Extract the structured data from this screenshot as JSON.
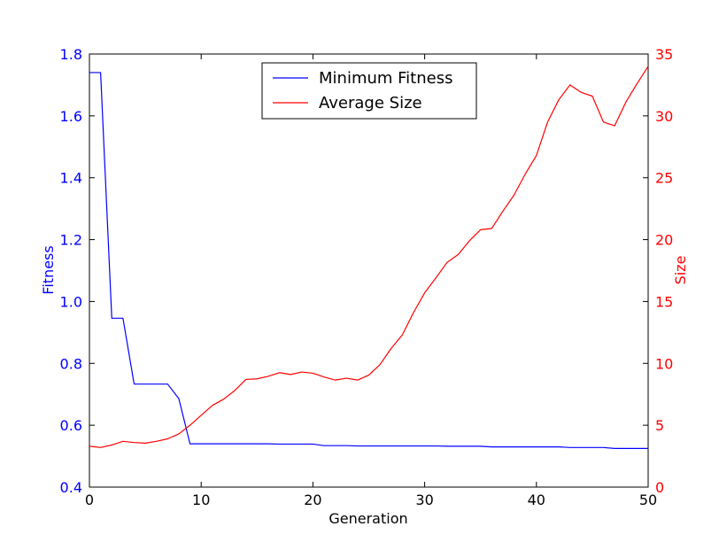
{
  "chart_data": {
    "type": "line",
    "xlabel": "Generation",
    "ylabel": "Fitness",
    "y2label": "Size",
    "xlim": [
      0,
      50
    ],
    "ylim": [
      0.4,
      1.8
    ],
    "y2lim": [
      0,
      35
    ],
    "xticks": [
      0,
      10,
      20,
      30,
      40,
      50
    ],
    "yticks": [
      0.4,
      0.6,
      0.8,
      1.0,
      1.2,
      1.4,
      1.6,
      1.8
    ],
    "y2ticks": [
      0,
      5,
      10,
      15,
      20,
      25,
      30,
      35
    ],
    "grid": false,
    "legend_position": "top-center",
    "colors": {
      "fitness": "#0000ff",
      "size": "#ff0000",
      "axes": "#000000"
    },
    "series": [
      {
        "name": "Minimum Fitness",
        "axis": "left",
        "color": "#0000ff",
        "x": [
          0,
          1,
          2,
          3,
          4,
          5,
          6,
          7,
          8,
          9,
          10,
          11,
          12,
          13,
          14,
          15,
          16,
          17,
          18,
          19,
          20,
          21,
          22,
          23,
          24,
          25,
          26,
          27,
          28,
          29,
          30,
          31,
          32,
          33,
          34,
          35,
          36,
          37,
          38,
          39,
          40,
          41,
          42,
          43,
          44,
          45,
          46,
          47,
          48,
          49,
          50
        ],
        "values": [
          1.74,
          1.74,
          0.946,
          0.946,
          0.733,
          0.733,
          0.733,
          0.733,
          0.686,
          0.54,
          0.54,
          0.54,
          0.54,
          0.54,
          0.54,
          0.54,
          0.54,
          0.539,
          0.539,
          0.539,
          0.539,
          0.534,
          0.534,
          0.534,
          0.533,
          0.533,
          0.533,
          0.533,
          0.533,
          0.533,
          0.533,
          0.533,
          0.532,
          0.532,
          0.532,
          0.532,
          0.53,
          0.53,
          0.53,
          0.53,
          0.53,
          0.53,
          0.53,
          0.528,
          0.528,
          0.528,
          0.528,
          0.525,
          0.525,
          0.525,
          0.525
        ]
      },
      {
        "name": "Average Size",
        "axis": "right",
        "color": "#ff0000",
        "x": [
          0,
          1,
          2,
          3,
          4,
          5,
          6,
          7,
          8,
          9,
          10,
          11,
          12,
          13,
          14,
          15,
          16,
          17,
          18,
          19,
          20,
          21,
          22,
          23,
          24,
          25,
          26,
          27,
          28,
          29,
          30,
          31,
          32,
          33,
          34,
          35,
          36,
          37,
          38,
          39,
          40,
          41,
          42,
          43,
          44,
          45,
          46,
          47,
          48,
          49,
          50
        ],
        "values": [
          3.3,
          3.2,
          3.4,
          3.7,
          3.6,
          3.55,
          3.7,
          3.9,
          4.3,
          5.0,
          5.8,
          6.6,
          7.1,
          7.8,
          8.7,
          8.75,
          8.95,
          9.25,
          9.1,
          9.3,
          9.2,
          8.9,
          8.65,
          8.8,
          8.65,
          9.05,
          9.9,
          11.2,
          12.3,
          14.1,
          15.7,
          16.9,
          18.15,
          18.8,
          19.9,
          20.8,
          20.9,
          22.3,
          23.6,
          25.3,
          26.8,
          29.5,
          31.3,
          32.5,
          31.9,
          31.6,
          29.5,
          29.2,
          31.1,
          32.6,
          34.0
        ]
      }
    ]
  }
}
